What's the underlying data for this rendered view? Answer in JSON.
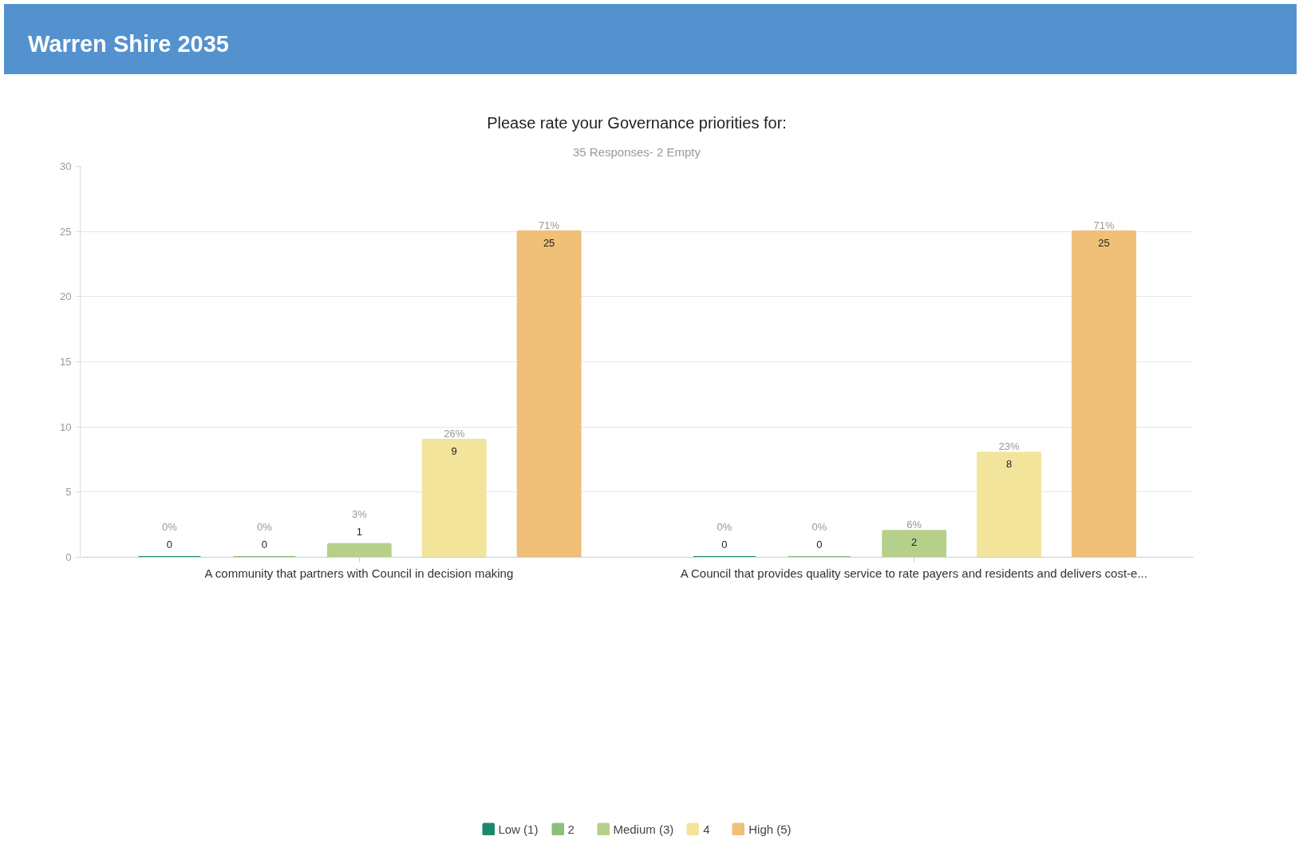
{
  "chart_data": {
    "type": "bar",
    "title": "Please rate your Governance priorities for:",
    "subtitle": "35 Responses- 2 Empty",
    "annotations": [
      "Warren Shire 2035",
      "0%",
      "0%",
      "0%",
      "0%",
      "3%",
      "6%",
      "26%",
      "23%",
      "71%",
      "71%"
    ],
    "categories": [
      "A community that partners with Council in decision making",
      "A Council that provides quality service to rate payers and residents and delivers cost-e..."
    ],
    "series": [
      {
        "name": "Low (1)",
        "color": "#1b8a6b",
        "values": [
          0,
          0
        ]
      },
      {
        "name": "2",
        "color": "#8dbf7b",
        "values": [
          0,
          0
        ]
      },
      {
        "name": "Medium (3)",
        "color": "#b6d08a",
        "values": [
          1,
          2
        ]
      },
      {
        "name": "4",
        "color": "#f3e49c",
        "values": [
          9,
          8
        ]
      },
      {
        "name": "High (5)",
        "color": "#f0bf78",
        "values": [
          25,
          25
        ]
      }
    ],
    "data_labels": true,
    "ylim": [
      0,
      30
    ],
    "yticks": [
      0,
      5,
      10,
      15,
      20,
      25,
      30
    ],
    "grid": "y",
    "legend": "bottom"
  }
}
